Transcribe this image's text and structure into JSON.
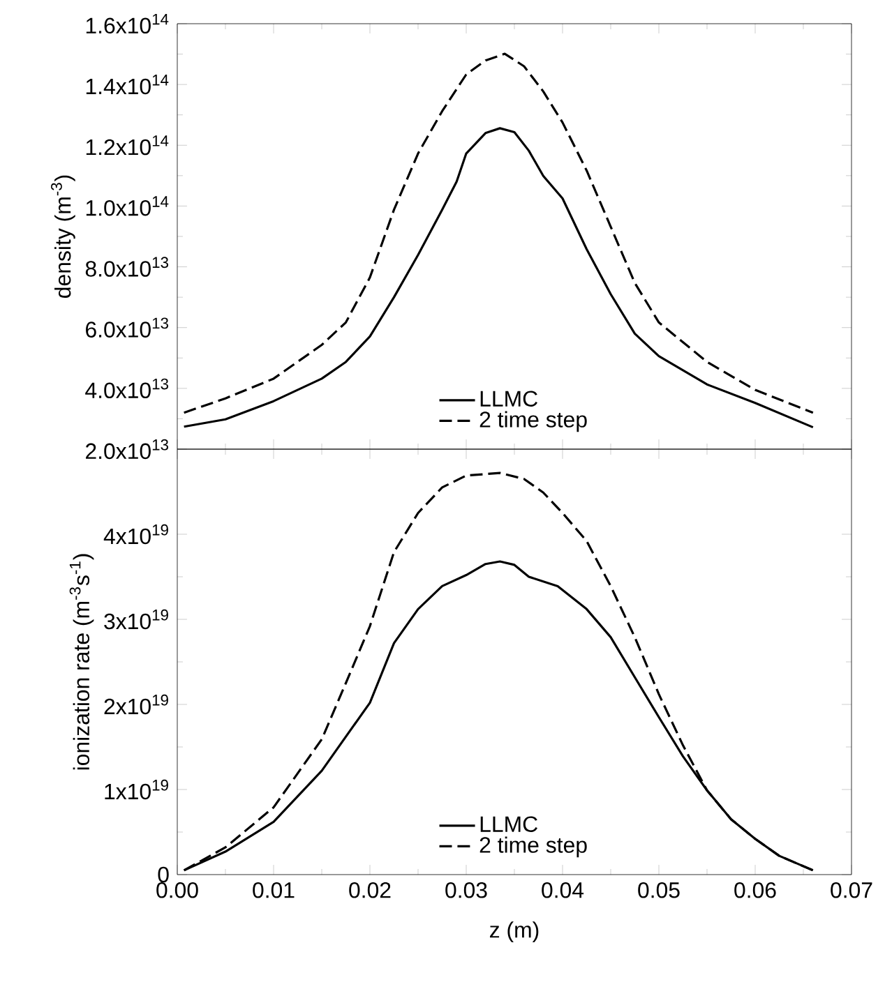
{
  "chart_data": [
    {
      "type": "line",
      "ylabel": "density (m$^{-3}$)",
      "tick_labels": "y",
      "legend": "bottom",
      "xlim": [
        0,
        0.07
      ],
      "xticks": [
        0,
        0.01,
        0.02,
        0.03,
        0.04,
        0.05,
        0.06,
        0.07
      ],
      "ylim": [
        20000000000000.0,
        160000000000000.0
      ],
      "yticks": [
        {
          "value": 20000000000000.0,
          "label": "2.0x10$^{13}$"
        },
        {
          "value": 40000000000000.0,
          "label": "4.0x10$^{13}$"
        },
        {
          "value": 60000000000000.0,
          "label": "6.0x10$^{13}$"
        },
        {
          "value": 80000000000000.0,
          "label": "8.0x10$^{13}$"
        },
        {
          "value": 100000000000000.0,
          "label": "1.0x10$^{14}$"
        },
        {
          "value": 120000000000000.0,
          "label": "1.2x10$^{14}$"
        },
        {
          "value": 140000000000000.0,
          "label": "1.4x10$^{14}$"
        },
        {
          "value": 160000000000000.0,
          "label": "1.6x10$^{14}$"
        }
      ],
      "series": [
        {
          "name": "LLMC",
          "color": "#000000",
          "line_style": "solid",
          "x": [
            0.0007,
            0.005,
            0.01,
            0.015,
            0.0175,
            0.02,
            0.0225,
            0.025,
            0.0275,
            0.029,
            0.03,
            0.032,
            0.0335,
            0.035,
            0.0365,
            0.038,
            0.04,
            0.0425,
            0.045,
            0.0475,
            0.05,
            0.055,
            0.06,
            0.066
          ],
          "values": [
            27400000000000.0,
            29800000000000.0,
            35800000000000.0,
            43200000000000.0,
            48700000000000.0,
            57100000000000.0,
            70000000000000.0,
            83900000000000.0,
            98800000000000.0,
            108000000000000.0,
            117300000000000.0,
            124000000000000.0,
            125600000000000.0,
            124300000000000.0,
            118200000000000.0,
            109900000000000.0,
            102500000000000.0,
            85800000000000.0,
            71000000000000.0,
            58000000000000.0,
            50600000000000.0,
            41300000000000.0,
            35200000000000.0,
            27200000000000.0
          ]
        },
        {
          "name": "2 time step",
          "color": "#000000",
          "line_style": "dashed",
          "x": [
            0.0007,
            0.005,
            0.01,
            0.015,
            0.0175,
            0.02,
            0.0225,
            0.025,
            0.0275,
            0.03,
            0.032,
            0.034,
            0.036,
            0.038,
            0.04,
            0.0425,
            0.045,
            0.0475,
            0.05,
            0.055,
            0.06,
            0.066
          ],
          "values": [
            32000000000000.0,
            36700000000000.0,
            43200000000000.0,
            54300000000000.0,
            61700000000000.0,
            76500000000000.0,
            98800000000000.0,
            117300000000000.0,
            131200000000000.0,
            143300000000000.0,
            147900000000000.0,
            150100000000000.0,
            146000000000000.0,
            137700000000000.0,
            127500000000000.0,
            111700000000000.0,
            93200000000000.0,
            74700000000000.0,
            61700000000000.0,
            48700000000000.0,
            39500000000000.0,
            32000000000000.0
          ]
        }
      ]
    },
    {
      "type": "line",
      "xlabel": "z (m)",
      "ylabel": "ionization rate (m$^{-3}$s$^{-1}$)",
      "legend": "bottom",
      "xlim": [
        0,
        0.07
      ],
      "xticks": [
        {
          "value": 0,
          "label": "0.00"
        },
        {
          "value": 0.01,
          "label": "0.01"
        },
        {
          "value": 0.02,
          "label": "0.02"
        },
        {
          "value": 0.03,
          "label": "0.03"
        },
        {
          "value": 0.04,
          "label": "0.04"
        },
        {
          "value": 0.05,
          "label": "0.05"
        },
        {
          "value": 0.06,
          "label": "0.06"
        },
        {
          "value": 0.07,
          "label": "0.07"
        }
      ],
      "ylim": [
        0,
        5e+19
      ],
      "yticks": [
        {
          "value": 0,
          "label": "0"
        },
        {
          "value": 1e+19,
          "label": "1x10$^{19}$"
        },
        {
          "value": 2e+19,
          "label": "2x10$^{19}$"
        },
        {
          "value": 3e+19,
          "label": "3x10$^{19}$"
        },
        {
          "value": 4e+19,
          "label": "4x10$^{19}$"
        }
      ],
      "series": [
        {
          "name": "LLMC",
          "color": "#000000",
          "line_style": "solid",
          "x": [
            0.0007,
            0.005,
            0.01,
            0.015,
            0.02,
            0.0225,
            0.025,
            0.0275,
            0.03,
            0.032,
            0.0335,
            0.035,
            0.0365,
            0.0395,
            0.0425,
            0.045,
            0.0475,
            0.05,
            0.0525,
            0.055,
            0.0575,
            0.06,
            0.0625,
            0.066
          ],
          "values": [
            5e+17,
            2.7e+18,
            6.2e+18,
            1.22e+19,
            2.02e+19,
            2.72e+19,
            3.12e+19,
            3.39e+19,
            3.52e+19,
            3.65e+19,
            3.68e+19,
            3.64e+19,
            3.5e+19,
            3.39e+19,
            3.12e+19,
            2.79e+19,
            2.32e+19,
            1.85e+19,
            1.39e+19,
            9.9e+18,
            6.5e+18,
            4.2e+18,
            2.2e+18,
            5e+17
          ]
        },
        {
          "name": "2 time step",
          "color": "#000000",
          "line_style": "dashed",
          "x": [
            0.0007,
            0.005,
            0.01,
            0.015,
            0.0175,
            0.02,
            0.0225,
            0.025,
            0.0275,
            0.03,
            0.0335,
            0.036,
            0.038,
            0.04,
            0.0425,
            0.045,
            0.0475,
            0.05,
            0.0525,
            0.055,
            0.0575,
            0.06,
            0.0625,
            0.066
          ],
          "values": [
            5e+17,
            3.2e+18,
            7.9e+18,
            1.59e+19,
            2.25e+19,
            2.92e+19,
            3.79e+19,
            4.25e+19,
            4.55e+19,
            4.69e+19,
            4.72e+19,
            4.65e+19,
            4.49e+19,
            4.25e+19,
            3.92e+19,
            3.39e+19,
            2.79e+19,
            2.12e+19,
            1.52e+19,
            9.9e+18,
            6.5e+18,
            4.2e+18,
            2.2e+18,
            5e+17
          ]
        }
      ]
    }
  ]
}
